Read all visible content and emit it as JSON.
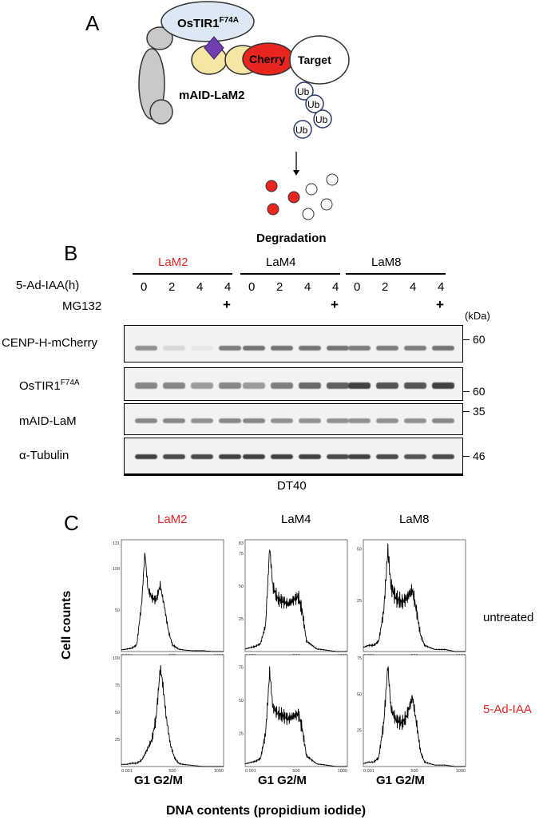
{
  "panel_a": {
    "letter": "A",
    "tir1_base": "OsTIR1",
    "tir1_sup": "F74A",
    "cherry": "Cherry",
    "target": "Target",
    "mAID": "mAID-LaM2",
    "ub": "Ub",
    "degradation": "Degradation"
  },
  "panel_b": {
    "letter": "B",
    "groups": [
      {
        "name": "LaM2",
        "color": "#e8251f"
      },
      {
        "name": "LaM4",
        "color": "#000000"
      },
      {
        "name": "LaM8",
        "color": "#000000"
      }
    ],
    "treatment_label": "5-Ad-IAA(h)",
    "times": [
      "0",
      "2",
      "4",
      "4",
      "0",
      "2",
      "4",
      "4",
      "0",
      "2",
      "4",
      "4"
    ],
    "mg132_label": "MG132",
    "mg132": [
      "",
      "",
      "",
      "+",
      "",
      "",
      "",
      "+",
      "",
      "",
      "",
      "+"
    ],
    "kda_label": "(kDa)",
    "rows": [
      {
        "label": "CENP-H-mCherry",
        "marker": "60",
        "intensity": [
          0.45,
          0.1,
          0.02,
          0.55,
          0.6,
          0.6,
          0.6,
          0.6,
          0.55,
          0.55,
          0.55,
          0.6
        ]
      },
      {
        "label_base": "OsTIR1",
        "label_sup": "F74A",
        "marker": "60",
        "intensity": [
          0.5,
          0.5,
          0.4,
          0.5,
          0.4,
          0.55,
          0.65,
          0.7,
          0.85,
          0.75,
          0.75,
          0.85
        ]
      },
      {
        "label": "mAID-LaM",
        "marker": "35",
        "intensity": [
          0.5,
          0.5,
          0.45,
          0.5,
          0.5,
          0.45,
          0.45,
          0.45,
          0.45,
          0.45,
          0.45,
          0.5
        ]
      },
      {
        "label": "α-Tubulin",
        "marker": "46",
        "intensity": [
          0.85,
          0.8,
          0.8,
          0.85,
          0.85,
          0.85,
          0.85,
          0.8,
          0.85,
          0.8,
          0.75,
          0.8
        ]
      }
    ],
    "cell_line": "DT40"
  },
  "panel_c": {
    "letter": "C",
    "columns": [
      {
        "name": "LaM2",
        "color": "#e8251f"
      },
      {
        "name": "LaM4",
        "color": "#000000"
      },
      {
        "name": "LaM8",
        "color": "#000000"
      }
    ],
    "row_labels": [
      {
        "text": "untreated",
        "color": "#000000"
      },
      {
        "text": "5-Ad-IAA",
        "color": "#e8251f"
      }
    ],
    "ylabel": "Cell counts",
    "xlabel": "DNA contents (propidium iodide)",
    "phase_label": "G1 G2/M",
    "x_ticks": [
      "0.001",
      "500",
      "1000"
    ]
  },
  "chart_data": [
    {
      "type": "line",
      "title": "LaM2 untreated",
      "xlim": [
        0,
        1000
      ],
      "ylim": [
        0,
        131
      ],
      "y_ticks": [
        "131",
        "100",
        "50"
      ],
      "x": [
        0,
        50,
        100,
        150,
        200,
        230,
        260,
        300,
        340,
        380,
        420,
        460,
        500,
        560,
        600,
        700,
        800,
        900,
        1000
      ],
      "y": [
        2,
        3,
        4,
        8,
        60,
        120,
        75,
        65,
        62,
        80,
        55,
        25,
        8,
        3,
        2,
        1,
        1,
        0,
        0
      ]
    },
    {
      "type": "line",
      "title": "LaM4 untreated",
      "xlim": [
        0,
        1000
      ],
      "ylim": [
        0,
        83
      ],
      "y_ticks": [
        "83",
        "75",
        "50",
        "25"
      ],
      "x": [
        0,
        50,
        100,
        150,
        200,
        240,
        270,
        320,
        380,
        420,
        480,
        520,
        560,
        600,
        700,
        800,
        900,
        1000
      ],
      "y": [
        2,
        3,
        4,
        6,
        20,
        80,
        50,
        40,
        38,
        36,
        40,
        42,
        30,
        8,
        2,
        1,
        0,
        0
      ]
    },
    {
      "type": "line",
      "title": "LaM8 untreated",
      "xlim": [
        0,
        1000
      ],
      "ylim": [
        0,
        53
      ],
      "y_ticks": [
        "50",
        "25"
      ],
      "x": [
        0,
        50,
        100,
        150,
        200,
        240,
        270,
        320,
        380,
        420,
        480,
        520,
        560,
        600,
        700,
        800,
        900,
        1000
      ],
      "y": [
        2,
        3,
        3,
        5,
        20,
        50,
        32,
        26,
        24,
        26,
        30,
        20,
        8,
        3,
        1,
        1,
        0,
        0
      ]
    },
    {
      "type": "line",
      "title": "LaM2 5-Ad-IAA",
      "xlim": [
        0,
        1000
      ],
      "ylim": [
        0,
        100
      ],
      "y_ticks": [
        "100",
        "75",
        "50",
        "25"
      ],
      "x": [
        0,
        50,
        100,
        150,
        200,
        250,
        300,
        340,
        380,
        400,
        440,
        480,
        520,
        560,
        600,
        700,
        800,
        1000
      ],
      "y": [
        2,
        2,
        3,
        3,
        6,
        15,
        25,
        45,
        90,
        80,
        45,
        20,
        8,
        3,
        2,
        1,
        0,
        0
      ]
    },
    {
      "type": "line",
      "title": "LaM4 5-Ad-IAA",
      "xlim": [
        0,
        1000
      ],
      "ylim": [
        0,
        82
      ],
      "y_ticks": [
        "75",
        "50",
        "25"
      ],
      "x": [
        0,
        50,
        100,
        150,
        200,
        240,
        270,
        320,
        380,
        420,
        480,
        520,
        560,
        600,
        700,
        800,
        900,
        1000
      ],
      "y": [
        2,
        3,
        4,
        6,
        25,
        72,
        45,
        40,
        38,
        36,
        38,
        40,
        28,
        8,
        2,
        1,
        0,
        0
      ]
    },
    {
      "type": "line",
      "title": "LaM8 5-Ad-IAA",
      "xlim": [
        0,
        1000
      ],
      "ylim": [
        0,
        75
      ],
      "y_ticks": [
        "75",
        "50",
        "25"
      ],
      "x": [
        0,
        50,
        100,
        150,
        200,
        240,
        270,
        320,
        380,
        420,
        480,
        520,
        560,
        600,
        700,
        800,
        900,
        1000
      ],
      "y": [
        2,
        3,
        3,
        6,
        30,
        70,
        40,
        32,
        30,
        34,
        48,
        30,
        10,
        3,
        1,
        1,
        0,
        0
      ]
    }
  ]
}
